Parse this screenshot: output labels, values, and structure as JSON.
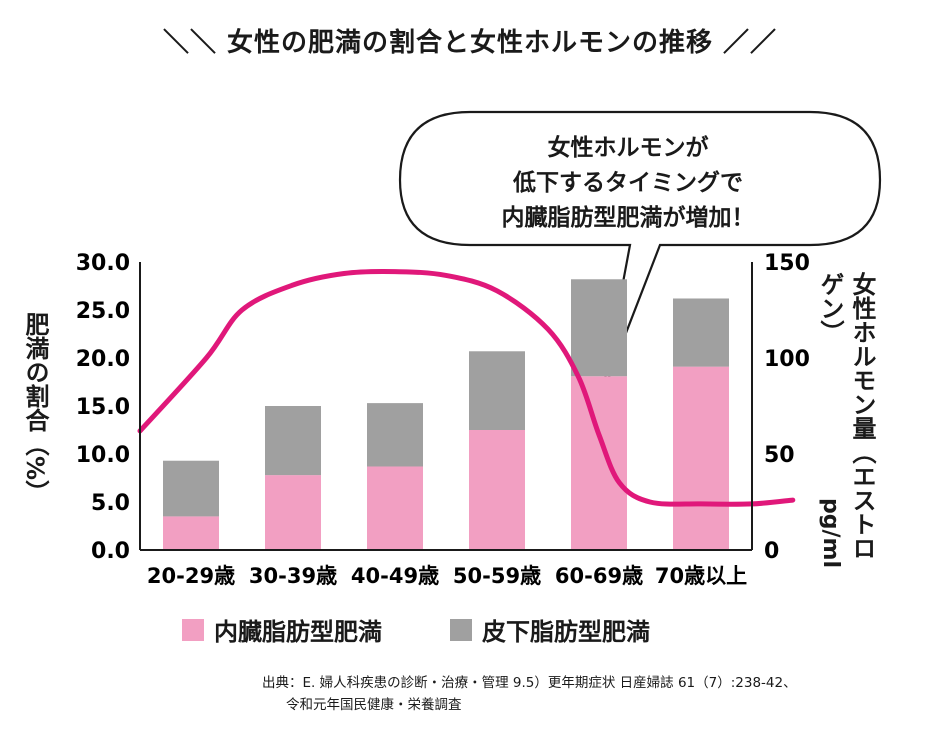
{
  "title": "＼＼ 女性の肥満の割合と女性ホルモンの推移 ／／",
  "callout": [
    "女性ホルモンが",
    "低下するタイミングで",
    "内臓脂肪型肥満が増加！"
  ],
  "source_lines": [
    "出典：E. 婦人科疾患の診断・治療・管理 9.5）更年期症状  日産婦誌  61（7）:238-42、",
    "令和元年国民健康・栄養調査"
  ],
  "colors": {
    "visceral": "#f29fc2",
    "subcutaneous": "#a0a0a0",
    "hormone_line": "#e0187a"
  },
  "chart_data": {
    "type": "bar",
    "stacked": true,
    "categories": [
      "20-29歳",
      "30-39歳",
      "40-49歳",
      "50-59歳",
      "60-69歳",
      "70歳以上"
    ],
    "series": [
      {
        "name": "内臓脂肪型肥満",
        "values": [
          3.5,
          7.8,
          8.7,
          12.5,
          18.1,
          19.1
        ]
      },
      {
        "name": "皮下脂肪型肥満",
        "values": [
          5.8,
          7.2,
          6.6,
          8.2,
          10.1,
          7.1
        ]
      }
    ],
    "line": {
      "axis": "right",
      "points": [
        [
          0,
          62
        ],
        [
          0.15,
          100
        ],
        [
          0.5,
          125
        ],
        [
          1.0,
          138
        ],
        [
          1.5,
          144
        ],
        [
          2.0,
          145
        ],
        [
          2.5,
          143
        ],
        [
          3.0,
          135
        ],
        [
          3.5,
          115
        ],
        [
          3.8,
          90
        ],
        [
          4.0,
          60
        ],
        [
          4.2,
          35
        ],
        [
          4.5,
          25
        ],
        [
          5.0,
          24
        ],
        [
          5.5,
          24
        ],
        [
          5.9,
          26
        ]
      ]
    },
    "ylabel_left": "肥満の割合（%）",
    "ylabel_right": "女性ホルモン量（エストロゲン）",
    "right_unit": "pg/ml",
    "ylim_left": [
      0,
      30
    ],
    "ylim_right": [
      0,
      150
    ],
    "yticks_left": [
      "0.0",
      "5.0",
      "10.0",
      "15.0",
      "20.0",
      "25.0",
      "30.0"
    ],
    "yticks_right": [
      "0",
      "50",
      "100",
      "150"
    ],
    "legend": [
      "内臓脂肪型肥満",
      "皮下脂肪型肥満"
    ]
  }
}
